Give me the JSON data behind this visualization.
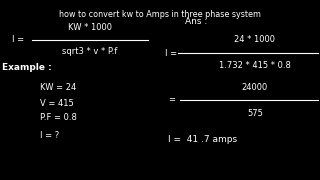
{
  "bg_color": "#000000",
  "text_color": "#ffffff",
  "title": "how to convert kw to Amps in three phase system",
  "formula_num": "KW * 1000",
  "formula_den": "sqrt3 * v * P.f",
  "example_label": "Example :",
  "ex_kw": "KW = 24",
  "ex_v": "V = 415",
  "ex_pf": "P.F = 0.8",
  "ex_i": "I = ?",
  "ans_label": "Ans :",
  "ans_num1": "24 * 1000",
  "ans_den1": "1.732 * 415 * 0.8",
  "ans_num2": "24000",
  "ans_den2": "575",
  "ans_final": "I =  41 .7 amps",
  "line_color": "#ffffff"
}
